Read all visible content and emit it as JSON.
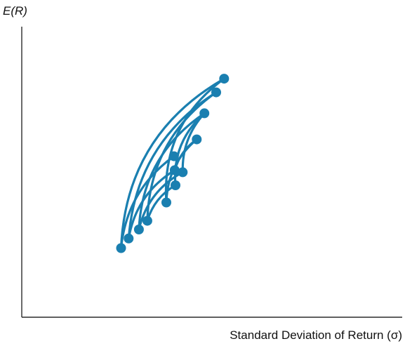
{
  "chart_data": {
    "type": "scatter",
    "title": "",
    "xlabel": "Standard Deviation of Return (σ)",
    "ylabel": "E(R)",
    "xlim": [
      0,
      100
    ],
    "ylim": [
      0,
      100
    ],
    "tick_labels": false,
    "grid": false,
    "legend": "none",
    "color": "#1a7fb0",
    "points": [
      {
        "x": 53.2,
        "y": 82.1
      },
      {
        "x": 51.1,
        "y": 77.4
      },
      {
        "x": 48.0,
        "y": 70.2
      },
      {
        "x": 46.0,
        "y": 61.2
      },
      {
        "x": 40.0,
        "y": 55.4
      },
      {
        "x": 40.2,
        "y": 50.6
      },
      {
        "x": 42.3,
        "y": 49.9
      },
      {
        "x": 40.4,
        "y": 45.4
      },
      {
        "x": 38.0,
        "y": 39.5
      },
      {
        "x": 33.0,
        "y": 33.2
      },
      {
        "x": 30.8,
        "y": 30.2
      },
      {
        "x": 28.1,
        "y": 27.1
      },
      {
        "x": 26.1,
        "y": 23.8
      }
    ],
    "curves": [
      {
        "from": 12,
        "to": 0,
        "bulge": 0.55
      },
      {
        "from": 11,
        "to": 1,
        "bulge": 0.5
      },
      {
        "from": 10,
        "to": 2,
        "bulge": 0.5
      },
      {
        "from": 9,
        "to": 1,
        "bulge": 0.5
      },
      {
        "from": 8,
        "to": 0,
        "bulge": 0.55
      },
      {
        "from": 12,
        "to": 4,
        "bulge": 0.45
      },
      {
        "from": 11,
        "to": 5,
        "bulge": 0.45
      },
      {
        "from": 10,
        "to": 6,
        "bulge": 0.45
      },
      {
        "from": 9,
        "to": 7,
        "bulge": 0.4
      },
      {
        "from": 8,
        "to": 3,
        "bulge": 0.45
      },
      {
        "from": 7,
        "to": 2,
        "bulge": 0.5
      },
      {
        "from": 6,
        "to": 2,
        "bulge": 0.4
      },
      {
        "from": 5,
        "to": 3,
        "bulge": 0.35
      }
    ]
  }
}
